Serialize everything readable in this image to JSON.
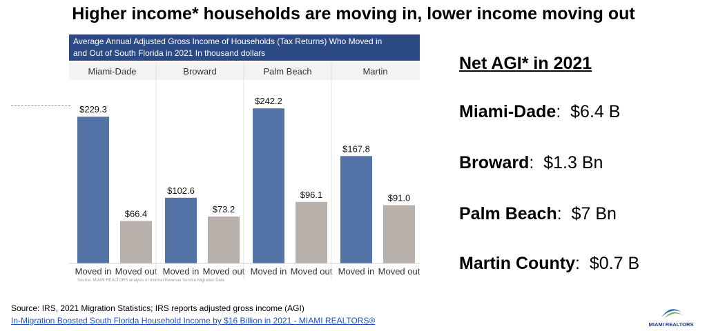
{
  "slide_title": "Higher income* households are moving in, lower income moving out",
  "chart_header_line1": "Average Annual Adjusted Gross Income of Households (Tax Returns) Who Moved in",
  "chart_header_line2": "and Out of South Florida in  2021 In thousand dollars",
  "chart_source": "Source: MIAMI REALTORS analysis of Internal Revenue Service Migration Data",
  "chart_data": {
    "type": "bar",
    "title": "Average Annual Adjusted Gross Income of Households (Tax Returns) Who Moved in and Out of South Florida in  2021 In thousand dollars",
    "panels": [
      "Miami-Dade",
      "Broward",
      "Palm Beach",
      "Martin"
    ],
    "categories": [
      "Moved in",
      "Moved out"
    ],
    "values": [
      [
        229.3,
        66.4
      ],
      [
        102.6,
        73.2
      ],
      [
        242.2,
        96.1
      ],
      [
        167.8,
        91.0
      ]
    ],
    "labels": [
      [
        "$229.3",
        "$66.4"
      ],
      [
        "$102.6",
        "$73.2"
      ],
      [
        "$242.2",
        "$96.1"
      ],
      [
        "$167.8",
        "$91.0"
      ]
    ],
    "colors": {
      "moved_in": "#5473a6",
      "moved_out": "#b7b0ab"
    },
    "ylim": [
      0,
      250
    ],
    "grid": false
  },
  "net": {
    "title": "Net AGI* in 2021",
    "rows": [
      {
        "name": "Miami-Dade",
        "sep": ":",
        "value": "$6.4 B"
      },
      {
        "name": "Broward",
        "sep": ":",
        "value": "$1.3 Bn"
      },
      {
        "name": "Palm Beach",
        "sep": ":",
        "value": "$7 Bn"
      },
      {
        "name": "Martin County",
        "sep": ":",
        "value": "$0.7 B"
      }
    ]
  },
  "footer": {
    "source": "Source: IRS, 2021 Migration Statistics; IRS reports adjusted gross income (AGI)",
    "link": "In-Migration Boosted South Florida Household Income by $16 Billion in 2021 - MIAMI REALTORS®"
  },
  "logo_text": "MIAMI REALTORS"
}
